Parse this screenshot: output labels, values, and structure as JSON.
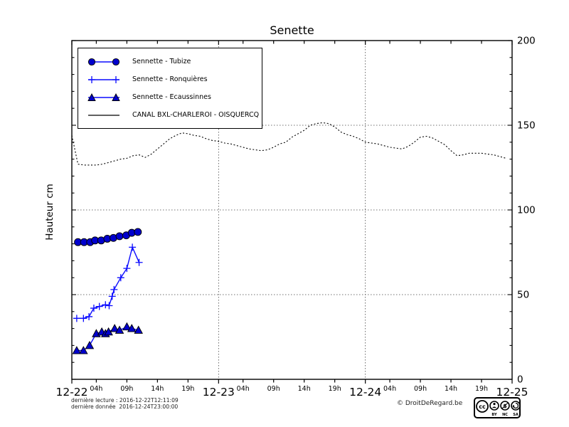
{
  "title": "Senette",
  "ylabel": "Hauteur cm",
  "colors": {
    "series_blue_line": "#0b0bff",
    "series_blue_marker": "#0000cd",
    "canal_black": "#000000",
    "grid": "#444444",
    "background": "#ffffff"
  },
  "footer": {
    "line1": "dernière lecture : 2016-12-22T12:11:09",
    "line2": "dernière donnée  2016-12-24T23:00:00",
    "copyright": "© DroitDeRegard.be",
    "license_badge": {
      "cc_label": "CC",
      "terms": [
        "BY",
        "NC",
        "SA"
      ]
    }
  },
  "chart_data": {
    "type": "line",
    "title": "Senette",
    "xlabel": "",
    "ylabel": "Hauteur cm",
    "ylim": [
      0,
      200
    ],
    "xlim_hours": [
      0,
      72
    ],
    "x_origin_date": "12-22",
    "grid": {
      "h_values": [
        50,
        100,
        150
      ],
      "v_hours": [
        24,
        48
      ]
    },
    "legend_position": "upper-left",
    "y_ticks": [
      {
        "v": 0,
        "label": "0"
      },
      {
        "v": 50,
        "label": "50"
      },
      {
        "v": 100,
        "label": "100"
      },
      {
        "v": 150,
        "label": "150"
      },
      {
        "v": 200,
        "label": "200"
      }
    ],
    "y_minor_step": 10,
    "x_ticks": [
      {
        "h": 0,
        "label": "12-22",
        "kind": "day"
      },
      {
        "h": 4,
        "label": "04h",
        "kind": "hour"
      },
      {
        "h": 9,
        "label": "09h",
        "kind": "hour"
      },
      {
        "h": 14,
        "label": "14h",
        "kind": "hour"
      },
      {
        "h": 19,
        "label": "19h",
        "kind": "hour"
      },
      {
        "h": 24,
        "label": "12-23",
        "kind": "day"
      },
      {
        "h": 28,
        "label": "04h",
        "kind": "hour"
      },
      {
        "h": 33,
        "label": "09h",
        "kind": "hour"
      },
      {
        "h": 38,
        "label": "14h",
        "kind": "hour"
      },
      {
        "h": 43,
        "label": "19h",
        "kind": "hour"
      },
      {
        "h": 48,
        "label": "12-24",
        "kind": "day"
      },
      {
        "h": 52,
        "label": "04h",
        "kind": "hour"
      },
      {
        "h": 57,
        "label": "09h",
        "kind": "hour"
      },
      {
        "h": 62,
        "label": "14h",
        "kind": "hour"
      },
      {
        "h": 67,
        "label": "19h",
        "kind": "hour"
      },
      {
        "h": 72,
        "label": "12-25",
        "kind": "day"
      }
    ],
    "series": [
      {
        "name": "Sennette - Tubize",
        "marker": "circle",
        "line_style": "solid",
        "color": "#0b0bff",
        "marker_color": "#0000cd",
        "x": [
          1,
          2,
          3,
          3.8,
          4.8,
          5.8,
          6.8,
          7.8,
          8.9,
          9.8,
          10.8
        ],
        "values": [
          81,
          81,
          81,
          82,
          82,
          83,
          83.5,
          84.5,
          85,
          86.5,
          87
        ]
      },
      {
        "name": "Sennette - Ronquières",
        "marker": "plus",
        "line_style": "solid",
        "color": "#0b0bff",
        "marker_color": "#0b0bff",
        "x": [
          0.8,
          1.9,
          2.8,
          3.6,
          4.5,
          5.5,
          6.1,
          6.6,
          6.9,
          8,
          9,
          9.9,
          11
        ],
        "values": [
          36,
          36,
          37,
          42,
          43,
          44,
          43.5,
          49,
          53,
          60,
          65.5,
          78,
          69
        ]
      },
      {
        "name": "Sennette - Ecaussinnes",
        "marker": "triangle",
        "line_style": "solid",
        "color": "#0b0bff",
        "marker_color": "#0000cd",
        "x": [
          0.8,
          1.9,
          2.9,
          4,
          4.9,
          5.5,
          6,
          7,
          7.8,
          9,
          9.8,
          10.9
        ],
        "values": [
          17,
          17,
          20,
          27,
          28,
          27,
          28,
          30,
          29,
          31,
          30,
          29
        ]
      },
      {
        "name": "CANAL BXL-CHARLEROI  - OISQUERCQ",
        "marker": "none",
        "line_style": "dotted",
        "color": "#000000",
        "x": [
          0,
          1,
          2,
          3,
          4,
          5,
          6,
          7,
          8,
          9,
          10,
          11,
          12,
          13,
          14,
          15,
          16,
          17,
          18,
          19,
          20,
          21,
          22,
          23,
          24,
          25,
          26,
          27,
          28,
          29,
          30,
          31,
          32,
          33,
          34,
          35,
          36,
          37,
          38,
          39,
          40,
          41,
          42,
          43,
          44,
          45,
          46,
          47,
          48,
          49,
          50,
          51,
          52,
          53,
          54,
          55,
          56,
          57,
          58,
          59,
          60,
          61,
          62,
          63,
          64,
          65,
          66,
          67,
          68,
          69,
          70,
          71
        ],
        "values": [
          144,
          127,
          126.5,
          126.5,
          126.5,
          127,
          128,
          129,
          130,
          130.5,
          132,
          132.5,
          131,
          133,
          136,
          139,
          142,
          144,
          145.5,
          145,
          144,
          143.5,
          142,
          141,
          140.5,
          139.5,
          139,
          138,
          137,
          136,
          135.5,
          135,
          135.5,
          137,
          139,
          140,
          143,
          145,
          147,
          150,
          151,
          151.5,
          151,
          149,
          146,
          144.5,
          143.5,
          142,
          140,
          139.5,
          139,
          138,
          137,
          136.5,
          136,
          137.5,
          140,
          143,
          143.5,
          142.5,
          140.5,
          138.5,
          135,
          132,
          132.5,
          133.5,
          133.5,
          133.5,
          133,
          132.5,
          131.5,
          130.5
        ]
      }
    ]
  }
}
